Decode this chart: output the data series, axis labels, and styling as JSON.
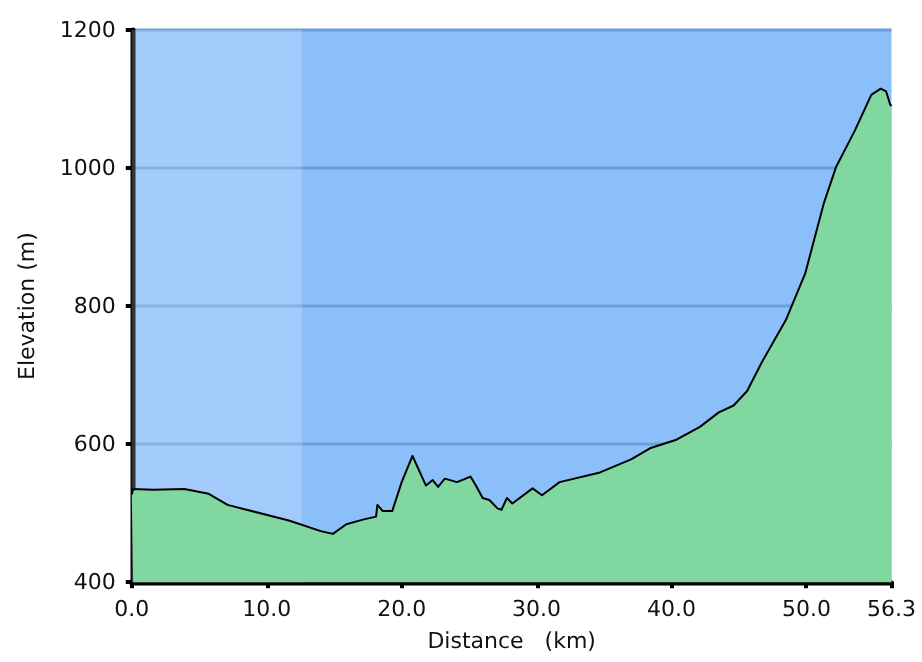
{
  "chart_data": {
    "type": "area",
    "xlabel": "Distance   (km)",
    "ylabel": "Elevation (m)",
    "x": [
      0,
      0.1,
      1.6,
      3.9,
      5.7,
      7.1,
      9.9,
      11.7,
      14.0,
      14.9,
      15.9,
      17.2,
      18.1,
      18.2,
      18.6,
      19.3,
      20.0,
      20.8,
      21.8,
      22.3,
      22.7,
      23.2,
      24.1,
      25.1,
      25.5,
      26.0,
      26.5,
      27.1,
      27.4,
      27.8,
      28.2,
      29.7,
      30.4,
      31.7,
      34.7,
      37.0,
      38.4,
      40.3,
      42.1,
      43.5,
      44.6,
      45.6,
      46.7,
      48.5,
      49.9,
      51.3,
      52.2,
      53.6,
      54.8,
      55.5,
      55.9,
      56.2,
      56.3
    ],
    "series": [
      {
        "color": "#80d7a0",
        "values": [
          527,
          535,
          534,
          535,
          528,
          512,
          498,
          489,
          474,
          470,
          484,
          491,
          495,
          512,
          503,
          503,
          545,
          583,
          540,
          548,
          538,
          550,
          545,
          553,
          540,
          522,
          519,
          507,
          505,
          522,
          514,
          536,
          526,
          545,
          559,
          578,
          594,
          606,
          625,
          646,
          656,
          677,
          719,
          781,
          847,
          950,
          1002,
          1055,
          1106,
          1115,
          1111,
          1092,
          1090
        ]
      }
    ],
    "xlim": [
      0,
      56.3
    ],
    "xticks": [
      {
        "value": 0,
        "label": "0.0"
      },
      {
        "value": 10,
        "label": "10.0"
      },
      {
        "value": 20,
        "label": "20.0"
      },
      {
        "value": 30,
        "label": "30.0"
      },
      {
        "value": 40,
        "label": "40.0"
      },
      {
        "value": 50,
        "label": "50.0"
      },
      {
        "value": 56.3,
        "label": "56.3"
      }
    ],
    "ylim": [
      400,
      1200
    ],
    "yticks": [
      400,
      600,
      800,
      1000,
      1200
    ],
    "grid": "y",
    "bands": [
      {
        "axis": "x",
        "from": 0,
        "to": 12.6,
        "color": "#ffffff"
      }
    ]
  }
}
